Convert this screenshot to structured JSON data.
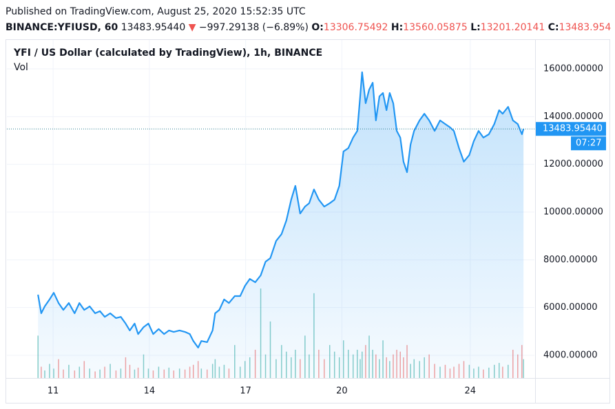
{
  "header": {
    "published": "Published on TradingView.com, August 25, 2020 15:52:35 UTC",
    "symbol": "BINANCE:YFIUSD, 60",
    "price": "13483.95440",
    "arrow": "▼",
    "change": "−997.29138 (−6.89%)",
    "o_label": "O:",
    "o": "13306.75492",
    "h_label": "H:",
    "h": "13560.05875",
    "l_label": "L:",
    "l": "13201.20141",
    "c_label": "C:",
    "c": "13483.954"
  },
  "chart_data": {
    "type": "area",
    "title": "YFI / US Dollar (calculated by TradingView), 1h, BINANCE",
    "last_price_label": "13483.95440",
    "countdown": "07:27",
    "xlim": [
      9.56,
      26
    ],
    "xticks": [
      11,
      14,
      17,
      20,
      24
    ],
    "ylim": [
      3048,
      17212
    ],
    "yticks": [
      {
        "value": 4000,
        "label": "4000.00000"
      },
      {
        "value": 6000,
        "label": "6000.00000"
      },
      {
        "value": 8000,
        "label": "8000.00000"
      },
      {
        "value": 10000,
        "label": "10000.00000"
      },
      {
        "value": 12000,
        "label": "12000.00000"
      },
      {
        "value": 14000,
        "label": "14000.00000"
      },
      {
        "value": 16000,
        "label": "16000.00000"
      }
    ],
    "grid": true,
    "x": [
      10.53,
      10.63,
      10.74,
      10.89,
      11.02,
      11.17,
      11.32,
      11.49,
      11.67,
      11.82,
      11.97,
      12.14,
      12.31,
      12.46,
      12.61,
      12.78,
      12.96,
      13.11,
      13.26,
      13.39,
      13.54,
      13.65,
      13.82,
      13.97,
      14.12,
      14.29,
      14.46,
      14.61,
      14.76,
      14.94,
      15.11,
      15.26,
      15.37,
      15.52,
      15.62,
      15.8,
      15.97,
      16.05,
      16.18,
      16.33,
      16.48,
      16.66,
      16.83,
      16.98,
      17.13,
      17.3,
      17.47,
      17.62,
      17.77,
      17.95,
      18.12,
      18.27,
      18.42,
      18.55,
      18.7,
      18.85,
      18.98,
      19.13,
      19.28,
      19.45,
      19.62,
      19.77,
      19.92,
      20.05,
      20.2,
      20.35,
      20.48,
      20.57,
      20.63,
      20.74,
      20.85,
      20.96,
      21.06,
      21.17,
      21.28,
      21.39,
      21.49,
      21.6,
      21.71,
      21.82,
      21.92,
      22.03,
      22.14,
      22.25,
      22.42,
      22.57,
      22.72,
      22.89,
      23.06,
      23.22,
      23.37,
      23.49,
      23.65,
      23.8,
      23.97,
      24.11,
      24.26,
      24.41,
      24.58,
      24.75,
      24.9,
      25.01,
      25.18,
      25.33,
      25.48,
      25.61,
      25.66
    ],
    "series": [
      {
        "name": "YFIUSD",
        "color": "#2196f3",
        "values": [
          6540,
          5760,
          6050,
          6340,
          6620,
          6190,
          5900,
          6190,
          5760,
          6190,
          5900,
          6050,
          5760,
          5850,
          5610,
          5760,
          5560,
          5610,
          5330,
          5040,
          5330,
          4890,
          5180,
          5330,
          4890,
          5100,
          4890,
          5040,
          4980,
          5040,
          4980,
          4890,
          4600,
          4320,
          4600,
          4550,
          5040,
          5760,
          5900,
          6340,
          6190,
          6480,
          6480,
          6910,
          7200,
          7060,
          7350,
          7920,
          8070,
          8790,
          9080,
          9650,
          10520,
          11100,
          9940,
          10230,
          10370,
          10950,
          10520,
          10230,
          10370,
          10520,
          11100,
          12540,
          12680,
          13120,
          13400,
          14850,
          15860,
          14560,
          15130,
          15420,
          13840,
          14850,
          14990,
          14270,
          14990,
          14560,
          13400,
          13120,
          12110,
          11670,
          12830,
          13400,
          13840,
          14120,
          13840,
          13400,
          13840,
          13690,
          13550,
          13400,
          12680,
          12110,
          12390,
          12970,
          13400,
          13120,
          13260,
          13690,
          14270,
          14120,
          14410,
          13840,
          13690,
          13260,
          13483.9544
        ]
      },
      {
        "name": "Vol",
        "up_color": "#26a69a",
        "down_color": "#ef5350",
        "values": [
          45,
          12,
          8,
          15,
          10,
          20,
          9,
          14,
          8,
          12,
          18,
          10,
          7,
          9,
          12,
          15,
          8,
          10,
          22,
          14,
          9,
          11,
          25,
          10,
          8,
          12,
          9,
          11,
          8,
          10,
          9,
          12,
          14,
          18,
          10,
          9,
          15,
          20,
          12,
          14,
          10,
          35,
          12,
          18,
          22,
          30,
          95,
          25,
          60,
          20,
          35,
          28,
          22,
          30,
          20,
          45,
          25,
          90,
          30,
          20,
          35,
          28,
          22,
          40,
          30,
          25,
          30,
          20,
          28,
          35,
          45,
          30,
          25,
          20,
          40,
          22,
          18,
          25,
          30,
          28,
          22,
          35,
          15,
          20,
          18,
          22,
          25,
          15,
          12,
          14,
          10,
          12,
          15,
          18,
          14,
          10,
          12,
          9,
          11,
          14,
          16,
          12,
          14,
          30,
          25,
          35,
          20
        ]
      }
    ]
  }
}
